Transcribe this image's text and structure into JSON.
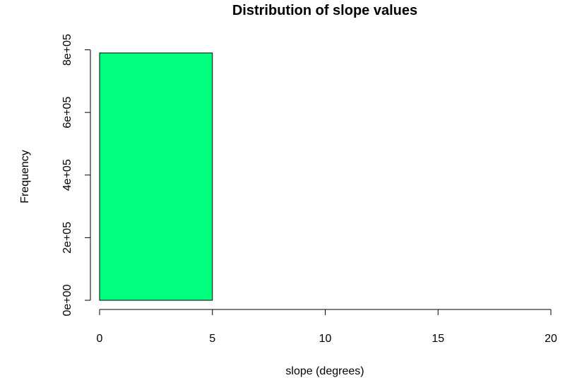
{
  "chart_data": {
    "type": "bar",
    "title": "Distribution of slope values",
    "xlabel": "slope (degrees)",
    "ylabel": "Frequency",
    "bins": [
      {
        "start": 0,
        "end": 5,
        "count": 790000
      },
      {
        "start": 5,
        "end": 10,
        "count": 0
      },
      {
        "start": 10,
        "end": 15,
        "count": 0
      },
      {
        "start": 15,
        "end": 20,
        "count": 0
      }
    ],
    "xlim": [
      0,
      20
    ],
    "ylim": [
      0,
      800000
    ],
    "xticks": [
      0,
      5,
      10,
      15,
      20
    ],
    "xtick_labels": [
      "0",
      "5",
      "10",
      "15",
      "20"
    ],
    "yticks": [
      0,
      200000,
      400000,
      600000,
      800000
    ],
    "ytick_labels": [
      "0e+00",
      "2e+05",
      "4e+05",
      "6e+05",
      "8e+05"
    ],
    "bar_color": "#00ff7f",
    "grid": false,
    "legend": "none"
  }
}
